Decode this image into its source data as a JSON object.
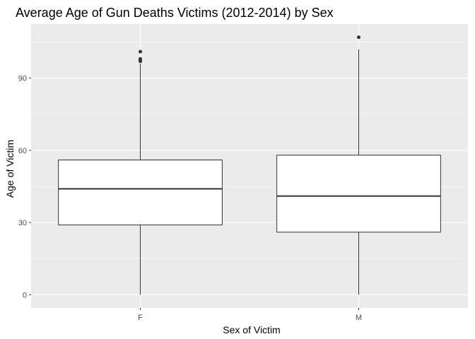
{
  "chart_data": {
    "type": "boxplot",
    "title": "Average Age of Gun Deaths Victims (2012-2014) by Sex",
    "xlabel": "Sex of Victim",
    "ylabel": "Age of Victim",
    "categories": [
      "F",
      "M"
    ],
    "yticks": [
      0,
      30,
      60,
      90
    ],
    "ylim": [
      -5.5,
      112.5
    ],
    "grid": true,
    "colors": {
      "panel": "#ebebeb",
      "grid_major": "#ffffff",
      "grid_minor": "#f5f5f5",
      "box_fill": "#ffffff",
      "stroke": "#333333"
    },
    "boxes": [
      {
        "category": "F",
        "min": 0,
        "q1": 29,
        "median": 44,
        "q3": 56,
        "max": 96,
        "outliers": [
          97,
          97.5,
          98,
          101
        ]
      },
      {
        "category": "M",
        "min": 0,
        "q1": 26,
        "median": 41,
        "q3": 58,
        "max": 102,
        "outliers": [
          107
        ]
      }
    ]
  }
}
